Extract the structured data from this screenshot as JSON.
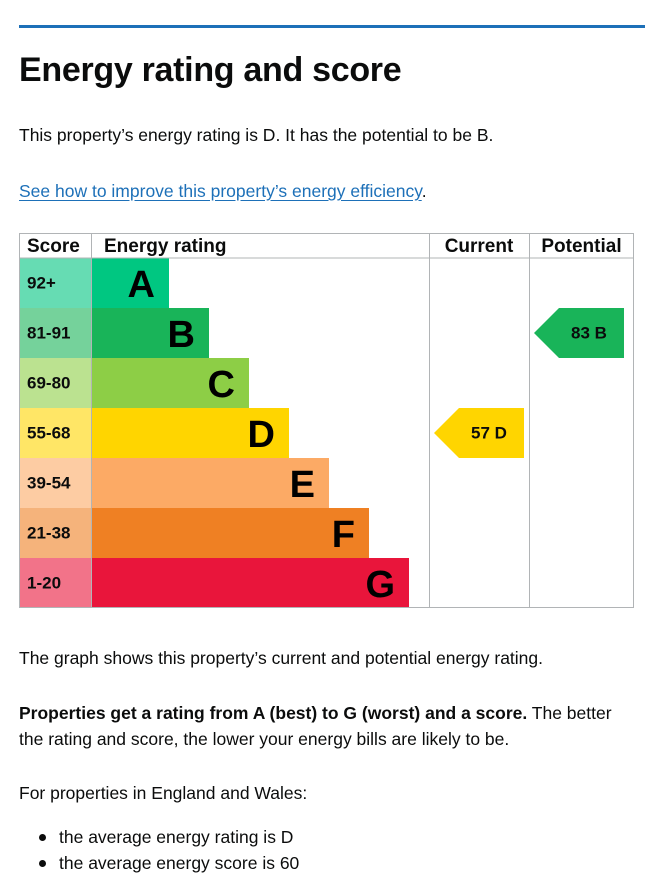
{
  "heading": "Energy rating and score",
  "intro": "This property’s energy rating is D. It has the potential to be B.",
  "improve_link": "See how to improve this property’s energy efficiency",
  "improve_suffix": ".",
  "chart_headers": {
    "score": "Score",
    "energy_rating": "Energy rating",
    "current": "Current",
    "potential": "Potential"
  },
  "chart_data": {
    "type": "table",
    "rows": [
      {
        "score": "92+",
        "letter": "A",
        "color": "#00c781",
        "score_bg": "#66dcb3"
      },
      {
        "score": "81-91",
        "letter": "B",
        "color": "#19b459",
        "score_bg": "#75d29b"
      },
      {
        "score": "69-80",
        "letter": "C",
        "color": "#8dce46",
        "score_bg": "#bbe290"
      },
      {
        "score": "55-68",
        "letter": "D",
        "color": "#ffd500",
        "score_bg": "#ffe666"
      },
      {
        "score": "39-54",
        "letter": "E",
        "color": "#fcaa65",
        "score_bg": "#fdcca3"
      },
      {
        "score": "21-38",
        "letter": "F",
        "color": "#ef8023",
        "score_bg": "#f5b37b"
      },
      {
        "score": "1-20",
        "letter": "G",
        "color": "#e9153b",
        "score_bg": "#f27389"
      }
    ],
    "current": {
      "value": 57,
      "letter": "D",
      "label": "57 D",
      "color": "#ffd500"
    },
    "potential": {
      "value": 83,
      "letter": "B",
      "label": "83 B",
      "color": "#19b459"
    }
  },
  "graph_caption": "The graph shows this property’s current and potential energy rating.",
  "summary_bold": "Properties get a rating from A (best) to G (worst) and a score.",
  "summary_rest": " The better the rating and score, the lower your energy bills are likely to be.",
  "region_text": "For properties in England and Wales:",
  "averages": [
    "the average energy rating is D",
    "the average energy score is 60"
  ]
}
